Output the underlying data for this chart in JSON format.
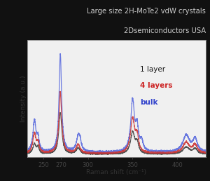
{
  "title_line1": "Large size 2H-MoTe2 vdW crystals",
  "title_line2": "2Dsemiconductors USA",
  "xlabel": "Raman shift (cm⁻¹)",
  "ylabel": "Intensity (a.u.)",
  "xmin": 232,
  "xmax": 432,
  "xticks": [
    250,
    270,
    300,
    350,
    400
  ],
  "legend": [
    "1 layer",
    "4 layers",
    "bulk"
  ],
  "legend_colors": [
    "#1a1a1a",
    "#cc2222",
    "#3344cc"
  ],
  "line_colors": [
    "#444444",
    "#cc3333",
    "#5566dd"
  ],
  "bg_color": "#111111",
  "plot_bg_color": "#f0f0f0",
  "title_color": "#cccccc",
  "axis_label_color": "#333333",
  "tick_label_color": "#444444"
}
